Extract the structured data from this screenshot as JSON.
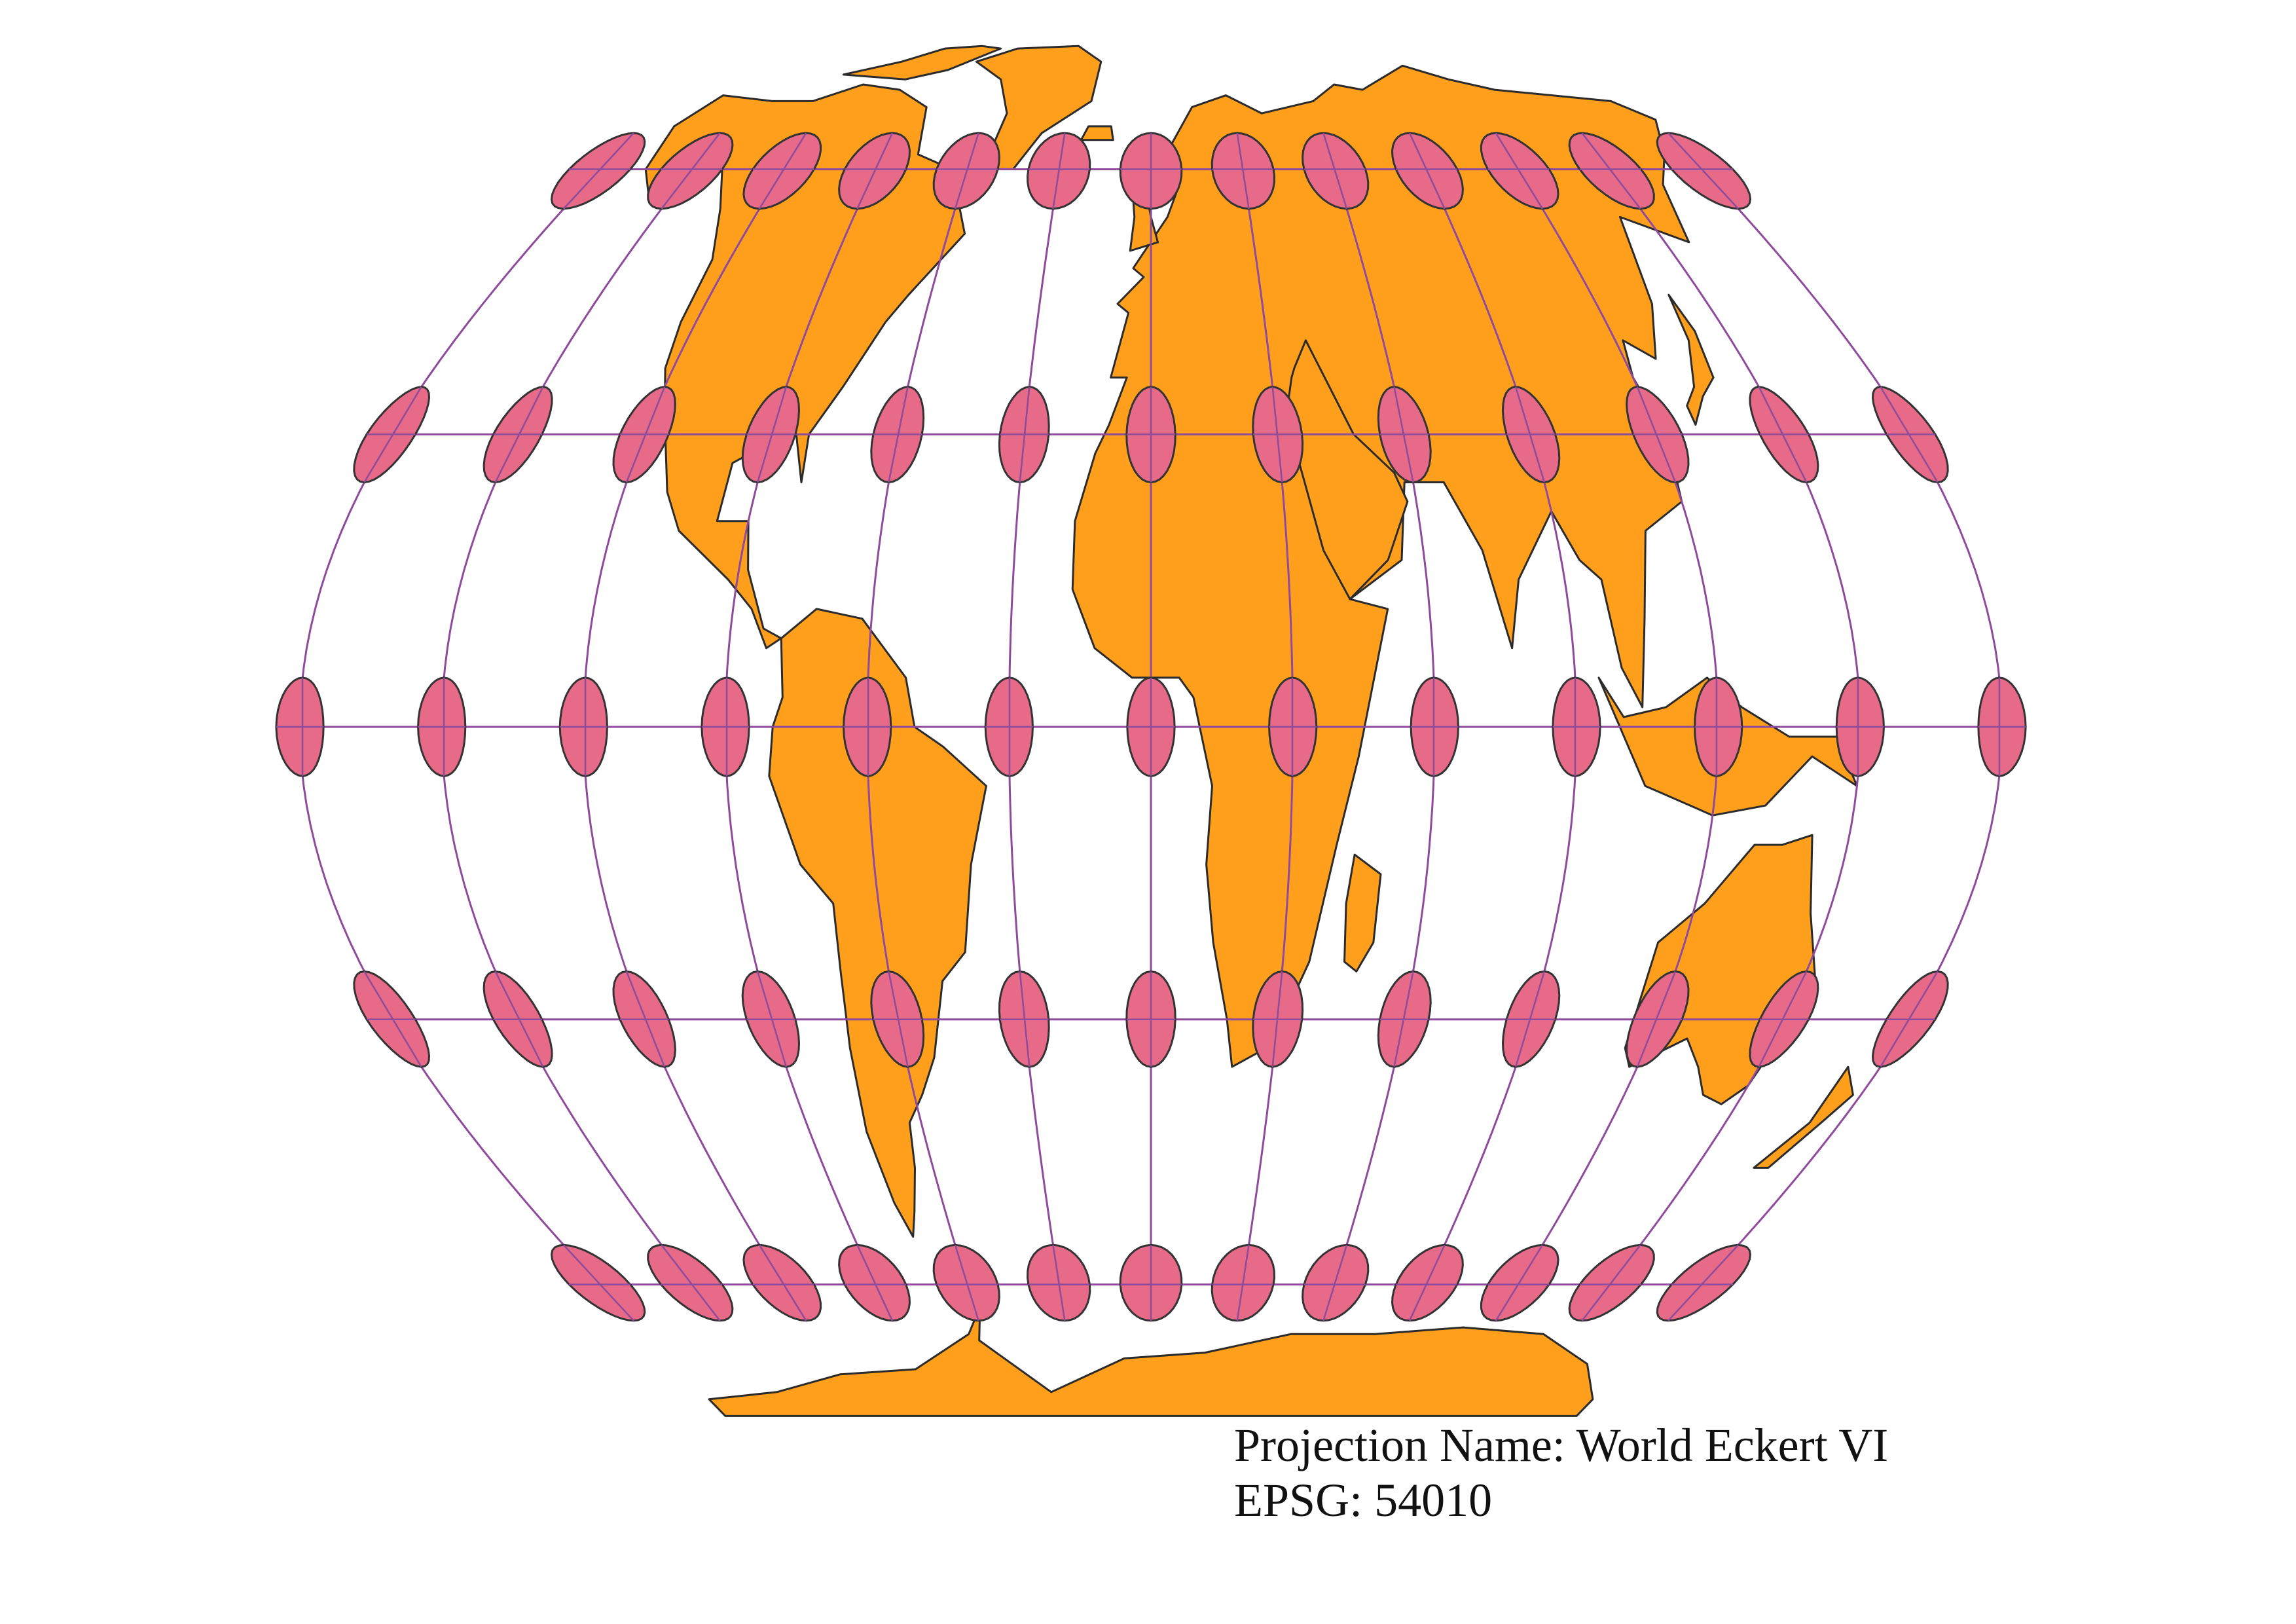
{
  "map": {
    "projection_label": "Projection Name: World Eckert VI",
    "epsg_label": "EPSG: 54010",
    "colors": {
      "land": "#ff9f1c",
      "coast": "#2b2b2b",
      "graticule": "#8e4b9b",
      "indicatrix_fill": "#e76a88",
      "indicatrix_stroke": "#333333",
      "background": "#ffffff"
    },
    "graticule": {
      "longitudes_deg": [
        -180,
        -150,
        -120,
        -90,
        -60,
        -30,
        0,
        30,
        60,
        90,
        120,
        150,
        180
      ],
      "latitudes_deg": [
        -60,
        -30,
        0,
        30,
        60
      ]
    },
    "icons": [
      "tissot-indicatrix",
      "land-mass"
    ]
  }
}
